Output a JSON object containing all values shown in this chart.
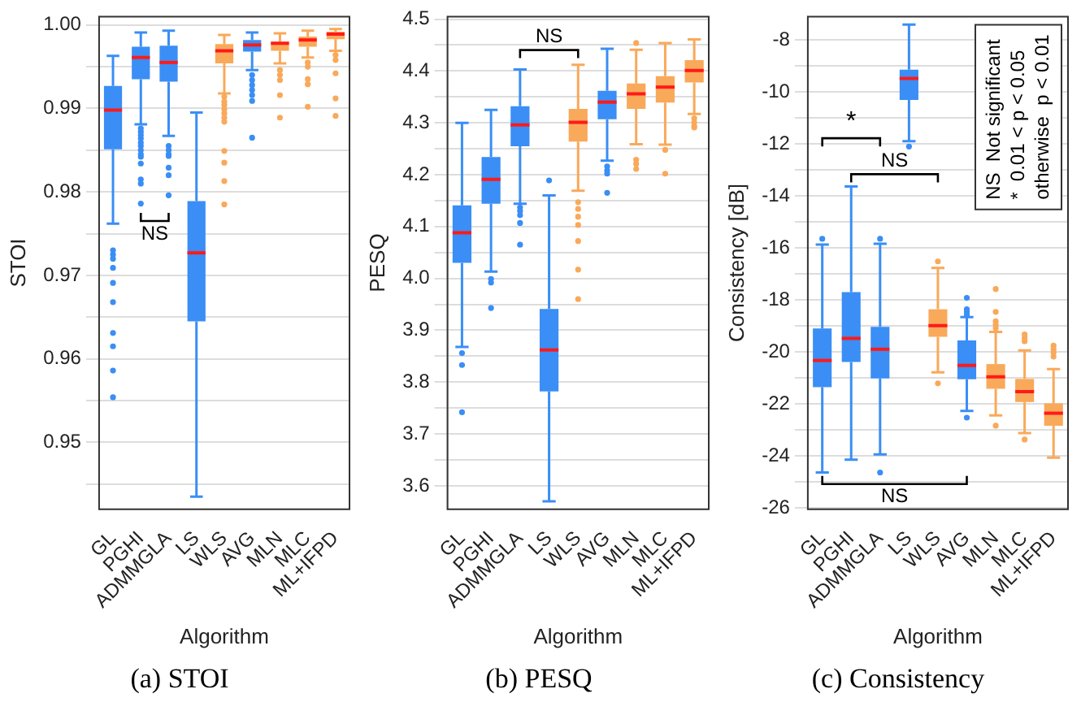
{
  "chart_data": [
    {
      "type": "box",
      "title": "(a) STOI",
      "xlabel": "Algorithm",
      "ylabel": "STOI",
      "grid": "y",
      "categories": [
        "GL",
        "PGHI",
        "ADMMGLA",
        "LS",
        "WLS",
        "AVG",
        "MLN",
        "MLC",
        "ML+IFPD"
      ],
      "colors": [
        "#3a8ef5",
        "#3a8ef5",
        "#3a8ef5",
        "#3a8ef5",
        "#f9a95a",
        "#3a8ef5",
        "#f9a95a",
        "#f9a95a",
        "#f9a95a"
      ],
      "ylim": [
        0.942,
        1.001
      ],
      "yticks": [
        {
          "value": 0.945,
          "label": null
        },
        0.95,
        {
          "value": 0.955,
          "label": null
        },
        0.96,
        {
          "value": 0.965,
          "label": null
        },
        0.97,
        {
          "value": 0.975,
          "label": null
        },
        0.98,
        {
          "value": 0.985,
          "label": null
        },
        0.99,
        {
          "value": 0.995,
          "label": null
        },
        {
          "value": 1,
          "label": "1.00"
        }
      ],
      "boxes": [
        {
          "low": 0.9762,
          "q1": 0.9851,
          "median": 0.9898,
          "q3": 0.9927,
          "high": 0.9963,
          "outliers": [
            0.973,
            0.9725,
            0.972,
            0.9709,
            0.9691,
            0.9668,
            0.9631,
            0.9615,
            0.9586,
            0.9554
          ]
        },
        {
          "low": 0.9881,
          "q1": 0.9935,
          "median": 0.9961,
          "q3": 0.9974,
          "high": 0.9991,
          "outliers": [
            0.9876,
            0.9872,
            0.9868,
            0.9864,
            0.9859,
            0.9855,
            0.985,
            0.9845,
            0.9842,
            0.9834,
            0.9815,
            0.981,
            0.9786
          ]
        },
        {
          "low": 0.9867,
          "q1": 0.9932,
          "median": 0.9955,
          "q3": 0.9975,
          "high": 0.9993,
          "outliers": [
            0.9855,
            0.985,
            0.9845,
            0.9843,
            0.9829,
            0.982,
            0.9796
          ]
        },
        {
          "low": 0.9435,
          "q1": 0.9645,
          "median": 0.9727,
          "q3": 0.9789,
          "high": 0.9895
        },
        {
          "low": 0.9918,
          "q1": 0.9954,
          "median": 0.9969,
          "q3": 0.9977,
          "high": 0.9988,
          "outliers": [
            0.9914,
            0.9908,
            0.9904,
            0.9899,
            0.9894,
            0.9889,
            0.9884,
            0.9849,
            0.9835,
            0.9813,
            0.9785
          ]
        },
        {
          "low": 0.9946,
          "q1": 0.9968,
          "median": 0.9976,
          "q3": 0.9982,
          "high": 0.9991,
          "outliers": [
            0.994,
            0.9934,
            0.9928,
            0.9922,
            0.9916,
            0.9909,
            0.9865
          ]
        },
        {
          "low": 0.9954,
          "q1": 0.9969,
          "median": 0.9978,
          "q3": 0.998,
          "high": 0.999,
          "outliers": [
            0.9946,
            0.994,
            0.9934,
            0.9916,
            0.9889
          ]
        },
        {
          "low": 0.9961,
          "q1": 0.9974,
          "median": 0.9982,
          "q3": 0.9986,
          "high": 0.9993,
          "outliers": [
            0.9955,
            0.995,
            0.9935,
            0.9929,
            0.9902
          ]
        },
        {
          "low": 0.9969,
          "q1": 0.9983,
          "median": 0.9989,
          "q3": 0.9992,
          "high": 0.9995,
          "outliers": [
            0.9964,
            0.9958,
            0.9942,
            0.9912,
            0.9891
          ]
        }
      ],
      "annotations": [
        "NS"
      ]
    },
    {
      "type": "box",
      "title": "(b) PESQ",
      "xlabel": "Algorithm",
      "ylabel": "PESQ",
      "grid": "y",
      "categories": [
        "GL",
        "PGHI",
        "ADMMGLA",
        "LS",
        "WLS",
        "AVG",
        "MLN",
        "MLC",
        "ML+IFPD"
      ],
      "colors": [
        "#3a8ef5",
        "#3a8ef5",
        "#3a8ef5",
        "#3a8ef5",
        "#f9a95a",
        "#3a8ef5",
        "#f9a95a",
        "#f9a95a",
        "#f9a95a"
      ],
      "ylim": [
        3.555,
        4.505
      ],
      "yticks": [
        3.6,
        {
          "value": 3.65,
          "label": null
        },
        3.7,
        {
          "value": 3.75,
          "label": null
        },
        3.8,
        {
          "value": 3.85,
          "label": null
        },
        3.9,
        {
          "value": 3.95,
          "label": null
        },
        {
          "value": 4,
          "label": "4.0"
        },
        {
          "value": 4.05,
          "label": null
        },
        4.1,
        {
          "value": 4.15,
          "label": null
        },
        4.2,
        {
          "value": 4.25,
          "label": null
        },
        4.3,
        {
          "value": 4.35,
          "label": null
        },
        4.4,
        {
          "value": 4.45,
          "label": null
        },
        4.5
      ],
      "boxes": [
        {
          "low": 3.868,
          "q1": 4.03,
          "median": 4.088,
          "q3": 4.141,
          "high": 4.3,
          "outliers": [
            3.856,
            3.833,
            3.742
          ]
        },
        {
          "low": 4.013,
          "q1": 4.144,
          "median": 4.191,
          "q3": 4.234,
          "high": 4.325,
          "outliers": [
            3.999,
            3.992,
            3.943
          ]
        },
        {
          "low": 4.144,
          "q1": 4.255,
          "median": 4.296,
          "q3": 4.332,
          "high": 4.403,
          "outliers": [
            4.137,
            4.13,
            4.122,
            4.107,
            4.065
          ]
        },
        {
          "low": 3.57,
          "q1": 3.782,
          "median": 3.862,
          "q3": 3.941,
          "high": 4.16,
          "outliers": [
            4.189
          ]
        },
        {
          "low": 4.169,
          "q1": 4.264,
          "median": 4.301,
          "q3": 4.327,
          "high": 4.412,
          "outliers": [
            4.147,
            4.134,
            4.119,
            4.103,
            4.072,
            4.017,
            3.96
          ]
        },
        {
          "low": 4.227,
          "q1": 4.307,
          "median": 4.34,
          "q3": 4.362,
          "high": 4.443,
          "outliers": [
            4.216,
            4.208,
            4.202,
            4.165
          ]
        },
        {
          "low": 4.259,
          "q1": 4.327,
          "median": 4.356,
          "q3": 4.376,
          "high": 4.441,
          "outliers": [
            4.454,
            4.229,
            4.221,
            4.211
          ]
        },
        {
          "low": 4.258,
          "q1": 4.339,
          "median": 4.369,
          "q3": 4.39,
          "high": 4.454,
          "outliers": [
            4.248,
            4.202
          ]
        },
        {
          "low": 4.317,
          "q1": 4.378,
          "median": 4.401,
          "q3": 4.421,
          "high": 4.461,
          "outliers": [
            4.309,
            4.301,
            4.294,
            4.291
          ]
        }
      ],
      "annotations": [
        "NS"
      ]
    },
    {
      "type": "box",
      "title": "(c) Consistency",
      "xlabel": "Algorithm",
      "ylabel": "Consistency [dB]",
      "grid": "y",
      "categories": [
        "GL",
        "PGHI",
        "ADMMGLA",
        "LS",
        "WLS",
        "AVG",
        "MLN",
        "MLC",
        "ML+IFPD"
      ],
      "colors": [
        "#3a8ef5",
        "#3a8ef5",
        "#3a8ef5",
        "#3a8ef5",
        "#f9a95a",
        "#3a8ef5",
        "#f9a95a",
        "#f9a95a",
        "#f9a95a"
      ],
      "ylim": [
        -26.05,
        -7.1
      ],
      "yticks": [
        -26,
        {
          "value": -25,
          "label": null
        },
        -24,
        {
          "value": -23,
          "label": null
        },
        -22,
        {
          "value": -21,
          "label": null
        },
        -20,
        {
          "value": -19,
          "label": null
        },
        -18,
        {
          "value": -17,
          "label": null
        },
        -16,
        {
          "value": -15,
          "label": null
        },
        -14,
        {
          "value": -13,
          "label": null
        },
        -12,
        {
          "value": -11,
          "label": null
        },
        -10,
        {
          "value": -9,
          "label": null
        },
        -8
      ],
      "boxes": [
        {
          "low": -24.64,
          "q1": -21.36,
          "median": -20.33,
          "q3": -19.1,
          "high": -15.87,
          "outliers": [
            -15.65
          ]
        },
        {
          "low": -24.15,
          "q1": -20.39,
          "median": -19.48,
          "q3": -17.7,
          "high": -13.64
        },
        {
          "low": -23.94,
          "q1": -21.02,
          "median": -19.9,
          "q3": -19.04,
          "high": -15.84,
          "outliers": [
            -15.65,
            -24.64
          ]
        },
        {
          "low": -11.89,
          "q1": -10.31,
          "median": -9.48,
          "q3": -9.14,
          "high": -7.41,
          "outliers": [
            -12.1
          ]
        },
        {
          "low": -20.79,
          "q1": -19.42,
          "median": -18.99,
          "q3": -18.36,
          "high": -16.77,
          "outliers": [
            -16.52,
            -21.21
          ]
        },
        {
          "low": -22.27,
          "q1": -21.05,
          "median": -20.52,
          "q3": -19.56,
          "high": -18.66,
          "outliers": [
            -17.92,
            -18.36,
            -18.46,
            -18.57,
            -22.53
          ]
        },
        {
          "low": -22.44,
          "q1": -21.42,
          "median": -20.96,
          "q3": -20.47,
          "high": -19.23,
          "outliers": [
            -17.58,
            -18.46,
            -18.82,
            -18.95,
            -19.08,
            -22.84
          ]
        },
        {
          "low": -23.12,
          "q1": -21.93,
          "median": -21.53,
          "q3": -21.04,
          "high": -19.94,
          "outliers": [
            -19.33,
            -19.46,
            -19.59,
            -23.37
          ]
        },
        {
          "low": -24.07,
          "q1": -22.84,
          "median": -22.36,
          "q3": -21.98,
          "high": -20.66,
          "outliers": [
            -19.76,
            -19.9,
            -20.03,
            -20.18
          ]
        }
      ],
      "annotations": [
        "*",
        "NS",
        "NS",
        "NS  Not significant",
        "*  0.01 < p < 0.05",
        "otherwise  p < 0.01"
      ]
    }
  ]
}
